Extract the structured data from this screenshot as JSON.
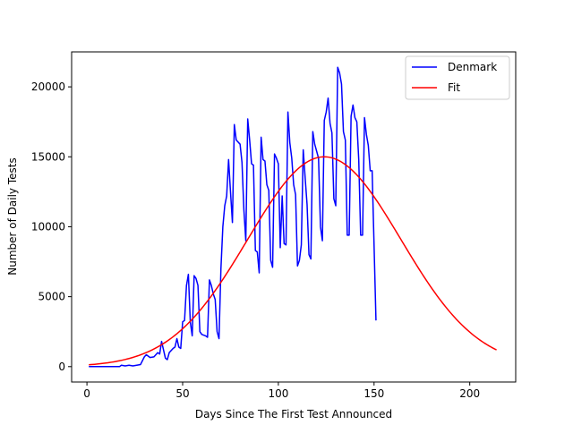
{
  "chart_data": {
    "type": "line",
    "xlabel": "Days Since The First Test Announced",
    "ylabel": "Number of Daily Tests",
    "xlim": [
      -8,
      224
    ],
    "ylim": [
      -1100,
      22500
    ],
    "xticks": [
      0,
      50,
      100,
      150,
      200
    ],
    "yticks": [
      0,
      5000,
      10000,
      15000,
      20000
    ],
    "grid": false,
    "legend_position": "top-right",
    "series": [
      {
        "name": "Denmark",
        "color": "#0000ff",
        "points": [
          [
            1,
            0
          ],
          [
            5,
            0
          ],
          [
            10,
            0
          ],
          [
            15,
            0
          ],
          [
            17,
            0
          ],
          [
            18,
            100
          ],
          [
            20,
            50
          ],
          [
            22,
            100
          ],
          [
            24,
            50
          ],
          [
            26,
            100
          ],
          [
            28,
            150
          ],
          [
            30,
            700
          ],
          [
            31,
            850
          ],
          [
            33,
            650
          ],
          [
            35,
            700
          ],
          [
            37,
            1000
          ],
          [
            38,
            900
          ],
          [
            39,
            1800
          ],
          [
            40,
            1200
          ],
          [
            41,
            600
          ],
          [
            42,
            500
          ],
          [
            43,
            1000
          ],
          [
            45,
            1300
          ],
          [
            46,
            1400
          ],
          [
            47,
            2000
          ],
          [
            48,
            1400
          ],
          [
            49,
            1300
          ],
          [
            50,
            3200
          ],
          [
            51,
            3300
          ],
          [
            52,
            5800
          ],
          [
            53,
            6600
          ],
          [
            54,
            3200
          ],
          [
            55,
            2200
          ],
          [
            56,
            6500
          ],
          [
            57,
            6300
          ],
          [
            58,
            5800
          ],
          [
            59,
            2500
          ],
          [
            60,
            2300
          ],
          [
            62,
            2200
          ],
          [
            63,
            2100
          ],
          [
            64,
            6200
          ],
          [
            65,
            5800
          ],
          [
            66,
            5200
          ],
          [
            67,
            4800
          ],
          [
            68,
            2500
          ],
          [
            69,
            2000
          ],
          [
            70,
            7000
          ],
          [
            71,
            10000
          ],
          [
            72,
            11500
          ],
          [
            73,
            12200
          ],
          [
            74,
            14800
          ],
          [
            75,
            12500
          ],
          [
            76,
            10300
          ],
          [
            77,
            17300
          ],
          [
            78,
            16200
          ],
          [
            80,
            15900
          ],
          [
            81,
            14600
          ],
          [
            82,
            11200
          ],
          [
            83,
            9000
          ],
          [
            84,
            17700
          ],
          [
            85,
            16200
          ],
          [
            86,
            14500
          ],
          [
            87,
            14400
          ],
          [
            88,
            8300
          ],
          [
            89,
            8200
          ],
          [
            90,
            6700
          ],
          [
            91,
            16400
          ],
          [
            92,
            14800
          ],
          [
            93,
            14700
          ],
          [
            94,
            13000
          ],
          [
            95,
            12600
          ],
          [
            96,
            7600
          ],
          [
            97,
            7100
          ],
          [
            98,
            15200
          ],
          [
            99,
            14900
          ],
          [
            100,
            14500
          ],
          [
            101,
            8500
          ],
          [
            102,
            12200
          ],
          [
            103,
            8800
          ],
          [
            104,
            8700
          ],
          [
            105,
            18200
          ],
          [
            106,
            16000
          ],
          [
            107,
            14900
          ],
          [
            108,
            13000
          ],
          [
            109,
            12300
          ],
          [
            110,
            7200
          ],
          [
            111,
            7600
          ],
          [
            112,
            8700
          ],
          [
            113,
            15500
          ],
          [
            114,
            13500
          ],
          [
            115,
            11600
          ],
          [
            116,
            8000
          ],
          [
            117,
            7700
          ],
          [
            118,
            16800
          ],
          [
            119,
            15900
          ],
          [
            120,
            15400
          ],
          [
            121,
            14900
          ],
          [
            122,
            10000
          ],
          [
            123,
            9000
          ],
          [
            124,
            17600
          ],
          [
            125,
            18200
          ],
          [
            126,
            19200
          ],
          [
            127,
            17400
          ],
          [
            128,
            16700
          ],
          [
            129,
            12000
          ],
          [
            130,
            11500
          ],
          [
            131,
            21400
          ],
          [
            132,
            21000
          ],
          [
            133,
            20200
          ],
          [
            134,
            16800
          ],
          [
            135,
            16200
          ],
          [
            136,
            9400
          ],
          [
            137,
            9400
          ],
          [
            138,
            17900
          ],
          [
            139,
            18700
          ],
          [
            140,
            17800
          ],
          [
            141,
            17500
          ],
          [
            142,
            14800
          ],
          [
            143,
            9400
          ],
          [
            144,
            9400
          ],
          [
            145,
            17800
          ],
          [
            146,
            16600
          ],
          [
            147,
            15800
          ],
          [
            148,
            14000
          ],
          [
            149,
            14000
          ],
          [
            150,
            8700
          ],
          [
            151,
            3300
          ]
        ]
      },
      {
        "name": "Fit",
        "color": "#ff0000",
        "model": {
          "amplitude": 15000,
          "center": 124,
          "sigma": 40
        },
        "x_range": [
          1,
          214
        ]
      }
    ]
  }
}
